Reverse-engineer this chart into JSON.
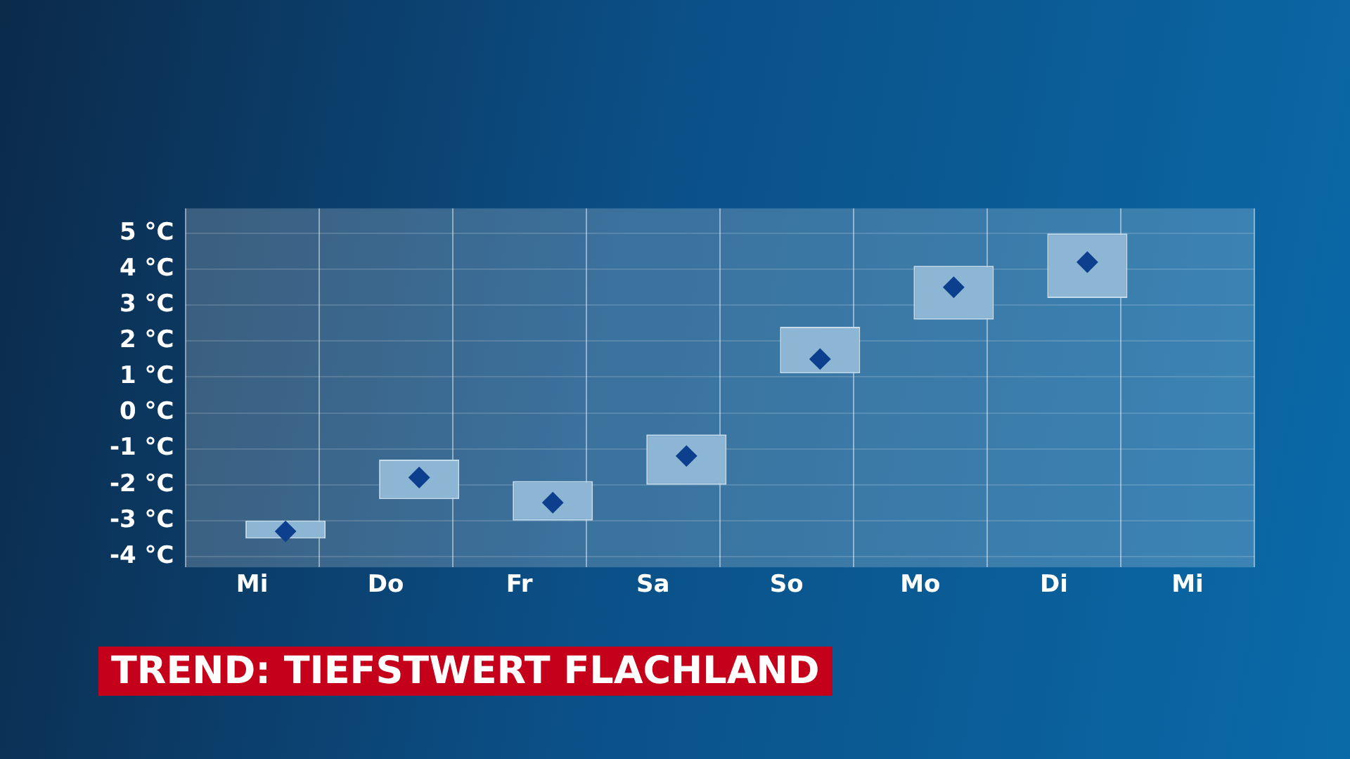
{
  "chart_data": {
    "type": "bar",
    "title": "TREND: TIEFSTWERT FLACHLAND",
    "categories": [
      "Mi",
      "Do",
      "Fr",
      "Sa",
      "So",
      "Mo",
      "Di",
      "Mi"
    ],
    "series": [
      {
        "color": "#8db6d4",
        "base": [
          -3.5,
          -2.4,
          -3.0,
          -2.0,
          1.1,
          2.6,
          3.2,
          null
        ],
        "values": [
          0.5,
          1.1,
          1.1,
          1.4,
          1.3,
          1.5,
          1.8,
          null
        ]
      },
      {
        "type": "scatter",
        "color": "#0d3f8f",
        "marker": "diamond",
        "values": [
          -3.3,
          -1.8,
          -2.5,
          -1.2,
          1.5,
          3.5,
          4.2,
          null
        ]
      }
    ],
    "ylim": [
      -4.3,
      5.7
    ],
    "yticks": [
      {
        "value": -4,
        "label": "-4 °C"
      },
      {
        "value": -3,
        "label": "-3 °C"
      },
      {
        "value": -2,
        "label": "-2 °C"
      },
      {
        "value": -1,
        "label": "-1 °C"
      },
      {
        "value": 0,
        "label": "0 °C"
      },
      {
        "value": 1,
        "label": "1 °C"
      },
      {
        "value": 2,
        "label": "2 °C"
      },
      {
        "value": 3,
        "label": "3 °C"
      },
      {
        "value": 4,
        "label": "4 °C"
      },
      {
        "value": 5,
        "label": "5 °C"
      }
    ],
    "grid": true,
    "legend": false
  }
}
